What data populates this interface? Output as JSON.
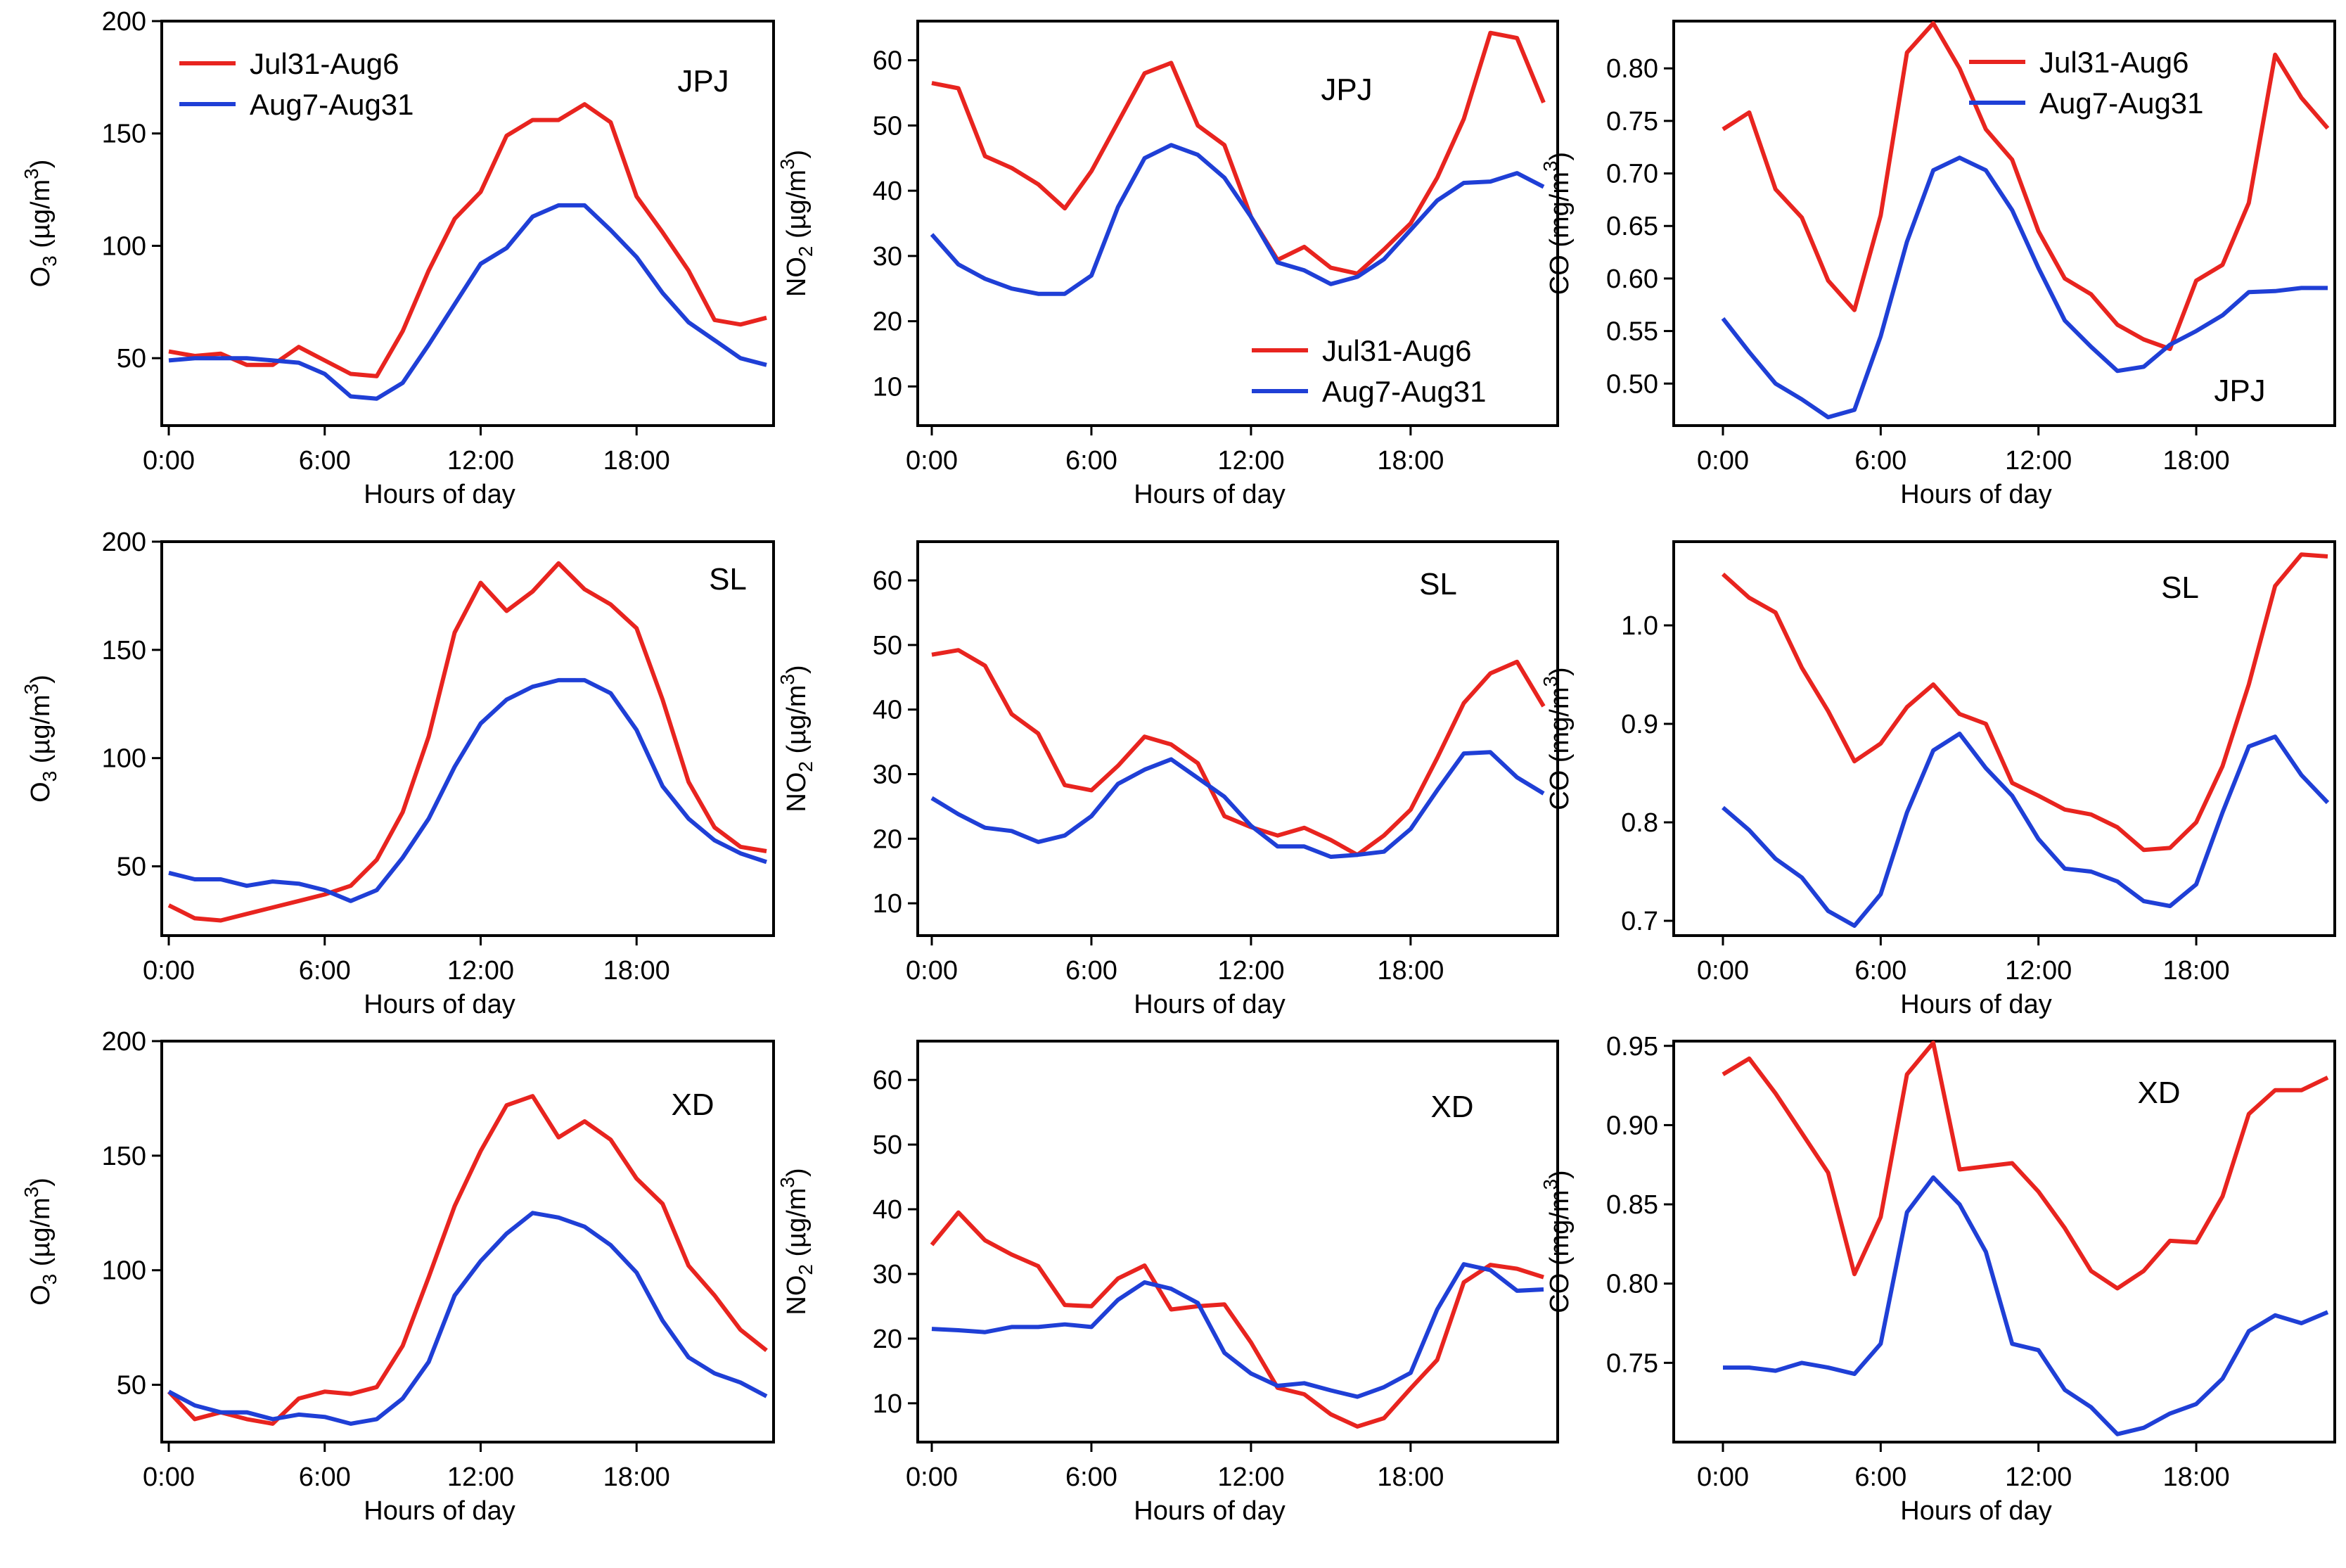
{
  "figure": {
    "x_tick_labels": [
      "0:00",
      "6:00",
      "12:00",
      "18:00"
    ],
    "xlabel": "Hours of day",
    "legend": [
      "Jul31-Aug6",
      "Aug7-Aug31"
    ],
    "colors": {
      "Jul31-Aug6": "#e8241f",
      "Aug7-Aug31": "#1f3fd6"
    }
  },
  "chart_data": [
    {
      "id": "o3-jpj",
      "type": "line",
      "site": "JPJ",
      "ylabel": "O3 (µg/m3)",
      "xlabel": "Hours of day",
      "x": [
        0,
        1,
        2,
        3,
        4,
        5,
        6,
        7,
        8,
        9,
        10,
        11,
        12,
        13,
        14,
        15,
        16,
        17,
        18,
        19,
        20,
        21,
        22,
        23
      ],
      "ylim": [
        20,
        200
      ],
      "yticks": [
        50,
        100,
        150,
        200
      ],
      "legend": "top-left",
      "series": [
        {
          "name": "Jul31-Aug6",
          "values": [
            53,
            51,
            52,
            47,
            47,
            55,
            49,
            43,
            42,
            62,
            89,
            112,
            124,
            149,
            156,
            156,
            163,
            155,
            122,
            106,
            89,
            67,
            65,
            68
          ]
        },
        {
          "name": "Aug7-Aug31",
          "values": [
            49,
            50,
            50,
            50,
            49,
            48,
            43,
            33,
            32,
            39,
            56,
            74,
            92,
            99,
            113,
            118,
            118,
            107,
            95,
            79,
            66,
            58,
            50,
            47
          ]
        }
      ]
    },
    {
      "id": "no2-jpj",
      "type": "line",
      "site": "JPJ",
      "ylabel": "NO2 (µg/m3)",
      "xlabel": "Hours of day",
      "x": [
        0,
        1,
        2,
        3,
        4,
        5,
        6,
        7,
        8,
        9,
        10,
        11,
        12,
        13,
        14,
        15,
        16,
        17,
        18,
        19,
        20,
        21,
        22,
        23
      ],
      "ylim": [
        4,
        66
      ],
      "yticks": [
        10,
        20,
        30,
        40,
        50,
        60
      ],
      "legend": "lower-right",
      "series": [
        {
          "name": "Jul31-Aug6",
          "values": [
            56.5,
            55.7,
            45.3,
            43.5,
            41,
            37.3,
            43,
            50.5,
            58,
            59.6,
            50,
            47,
            36,
            29.4,
            31.4,
            28.2,
            27.3,
            31,
            35,
            42,
            51,
            64.2,
            63.4,
            53.5
          ]
        },
        {
          "name": "Aug7-Aug31",
          "values": [
            33.3,
            28.7,
            26.5,
            25,
            24.2,
            24.2,
            27,
            37.5,
            45,
            47,
            45.5,
            42,
            36,
            29,
            27.8,
            25.7,
            26.8,
            29.5,
            34,
            38.5,
            41.2,
            41.4,
            42.7,
            40.6
          ]
        }
      ]
    },
    {
      "id": "co-jpj",
      "type": "line",
      "site": "JPJ",
      "ylabel": "CO (mg/m3)",
      "xlabel": "Hours of day",
      "x": [
        0,
        1,
        2,
        3,
        4,
        5,
        6,
        7,
        8,
        9,
        10,
        11,
        12,
        13,
        14,
        15,
        16,
        17,
        18,
        19,
        20,
        21,
        22,
        23
      ],
      "ylim": [
        0.46,
        0.845
      ],
      "yticks": [
        0.5,
        0.55,
        0.6,
        0.65,
        0.7,
        0.75,
        0.8
      ],
      "legend": "top-right",
      "series": [
        {
          "name": "Jul31-Aug6",
          "values": [
            0.742,
            0.758,
            0.685,
            0.658,
            0.598,
            0.57,
            0.66,
            0.815,
            0.843,
            0.8,
            0.742,
            0.713,
            0.645,
            0.6,
            0.585,
            0.556,
            0.542,
            0.533,
            0.598,
            0.613,
            0.672,
            0.813,
            0.772,
            0.743
          ]
        },
        {
          "name": "Aug7-Aug31",
          "values": [
            0.562,
            0.53,
            0.5,
            0.485,
            0.468,
            0.475,
            0.545,
            0.635,
            0.703,
            0.715,
            0.703,
            0.665,
            0.61,
            0.56,
            0.535,
            0.512,
            0.516,
            0.537,
            0.55,
            0.565,
            0.587,
            0.588,
            0.591,
            0.591
          ]
        }
      ]
    },
    {
      "id": "o3-sl",
      "type": "line",
      "site": "SL",
      "ylabel": "O3 (µg/m3)",
      "xlabel": "Hours of day",
      "x": [
        0,
        1,
        2,
        3,
        4,
        5,
        6,
        7,
        8,
        9,
        10,
        11,
        12,
        13,
        14,
        15,
        16,
        17,
        18,
        19,
        20,
        21,
        22,
        23
      ],
      "ylim": [
        18,
        200
      ],
      "yticks": [
        50,
        100,
        150,
        200
      ],
      "legend": "none",
      "series": [
        {
          "name": "Jul31-Aug6",
          "values": [
            32,
            26,
            25,
            28,
            31,
            34,
            37,
            41,
            53,
            75,
            110,
            158,
            181,
            168,
            177,
            190,
            178,
            171,
            160,
            127,
            89,
            68,
            59,
            57
          ]
        },
        {
          "name": "Aug7-Aug31",
          "values": [
            47,
            44,
            44,
            41,
            43,
            42,
            39,
            34,
            39,
            54,
            72,
            96,
            116,
            127,
            133,
            136,
            136,
            130,
            113,
            87,
            72,
            62,
            56,
            52
          ]
        }
      ]
    },
    {
      "id": "no2-sl",
      "type": "line",
      "site": "SL",
      "ylabel": "NO2 (µg/m3)",
      "xlabel": "Hours of day",
      "x": [
        0,
        1,
        2,
        3,
        4,
        5,
        6,
        7,
        8,
        9,
        10,
        11,
        12,
        13,
        14,
        15,
        16,
        17,
        18,
        19,
        20,
        21,
        22,
        23
      ],
      "ylim": [
        5,
        66
      ],
      "yticks": [
        10,
        20,
        30,
        40,
        50,
        60
      ],
      "legend": "none",
      "series": [
        {
          "name": "Jul31-Aug6",
          "values": [
            48.5,
            49.2,
            46.8,
            39.3,
            36.3,
            28.3,
            27.5,
            31.3,
            35.8,
            34.6,
            31.7,
            23.5,
            21.8,
            20.5,
            21.7,
            19.8,
            17.5,
            20.5,
            24.5,
            32.5,
            41,
            45.6,
            47.4,
            40.5
          ]
        },
        {
          "name": "Aug7-Aug31",
          "values": [
            26.3,
            23.8,
            21.7,
            21.2,
            19.5,
            20.5,
            23.5,
            28.5,
            30.7,
            32.3,
            29.4,
            26.5,
            22,
            18.8,
            18.8,
            17.2,
            17.5,
            18,
            21.5,
            27.5,
            33.2,
            33.4,
            29.5,
            27
          ]
        }
      ]
    },
    {
      "id": "co-sl",
      "type": "line",
      "site": "SL",
      "ylabel": "CO (mg/m3)",
      "xlabel": "Hours of day",
      "x": [
        0,
        1,
        2,
        3,
        4,
        5,
        6,
        7,
        8,
        9,
        10,
        11,
        12,
        13,
        14,
        15,
        16,
        17,
        18,
        19,
        20,
        21,
        22,
        23
      ],
      "ylim": [
        0.685,
        1.085
      ],
      "yticks": [
        0.7,
        0.8,
        0.9,
        1.0
      ],
      "legend": "none",
      "series": [
        {
          "name": "Jul31-Aug6",
          "values": [
            1.052,
            1.028,
            1.013,
            0.957,
            0.913,
            0.862,
            0.88,
            0.917,
            0.94,
            0.91,
            0.9,
            0.84,
            0.827,
            0.813,
            0.808,
            0.795,
            0.772,
            0.774,
            0.8,
            0.857,
            0.94,
            1.04,
            1.072,
            1.07
          ]
        },
        {
          "name": "Aug7-Aug31",
          "values": [
            0.815,
            0.792,
            0.763,
            0.744,
            0.71,
            0.695,
            0.727,
            0.81,
            0.873,
            0.89,
            0.855,
            0.827,
            0.783,
            0.753,
            0.75,
            0.74,
            0.72,
            0.715,
            0.737,
            0.81,
            0.877,
            0.887,
            0.848,
            0.82
          ]
        }
      ]
    },
    {
      "id": "o3-xd",
      "type": "line",
      "site": "XD",
      "ylabel": "O3 (µg/m3)",
      "xlabel": "Hours of day",
      "x": [
        0,
        1,
        2,
        3,
        4,
        5,
        6,
        7,
        8,
        9,
        10,
        11,
        12,
        13,
        14,
        15,
        16,
        17,
        18,
        19,
        20,
        21,
        22,
        23
      ],
      "ylim": [
        25,
        200
      ],
      "yticks": [
        50,
        100,
        150,
        200
      ],
      "legend": "none",
      "series": [
        {
          "name": "Jul31-Aug6",
          "values": [
            47,
            35,
            38,
            35,
            33,
            44,
            47,
            46,
            49,
            67,
            97,
            128,
            152,
            172,
            176,
            158,
            165,
            157,
            140,
            129,
            102,
            89,
            74,
            65
          ]
        },
        {
          "name": "Aug7-Aug31",
          "values": [
            47,
            41,
            38,
            38,
            35,
            37,
            36,
            33,
            35,
            44,
            60,
            89,
            104,
            116,
            125,
            123,
            119,
            111,
            99,
            78,
            62,
            55,
            51,
            45
          ]
        }
      ]
    },
    {
      "id": "no2-xd",
      "type": "line",
      "site": "XD",
      "ylabel": "NO2 (µg/m3)",
      "xlabel": "Hours of day",
      "x": [
        0,
        1,
        2,
        3,
        4,
        5,
        6,
        7,
        8,
        9,
        10,
        11,
        12,
        13,
        14,
        15,
        16,
        17,
        18,
        19,
        20,
        21,
        22,
        23
      ],
      "ylim": [
        4,
        66
      ],
      "yticks": [
        10,
        20,
        30,
        40,
        50,
        60
      ],
      "legend": "none",
      "series": [
        {
          "name": "Jul31-Aug6",
          "values": [
            34.5,
            39.5,
            35.2,
            33,
            31.2,
            25.2,
            25,
            29.3,
            31.3,
            24.5,
            25,
            25.3,
            19.4,
            12.4,
            11.4,
            8.3,
            6.4,
            7.7,
            12.3,
            16.7,
            28.7,
            31.4,
            30.8,
            29.5
          ]
        },
        {
          "name": "Aug7-Aug31",
          "values": [
            21.5,
            21.3,
            21,
            21.8,
            21.8,
            22.2,
            21.8,
            26,
            28.7,
            27.7,
            25.5,
            17.8,
            14.6,
            12.7,
            13.1,
            12,
            11,
            12.5,
            14.7,
            24.5,
            31.5,
            30.6,
            27.4,
            27.6
          ]
        }
      ]
    },
    {
      "id": "co-xd",
      "type": "line",
      "site": "XD",
      "ylabel": "CO (mg/m3)",
      "xlabel": "Hours of day",
      "x": [
        0,
        1,
        2,
        3,
        4,
        5,
        6,
        7,
        8,
        9,
        10,
        11,
        12,
        13,
        14,
        15,
        16,
        17,
        18,
        19,
        20,
        21,
        22,
        23
      ],
      "ylim": [
        0.7,
        0.953
      ],
      "yticks": [
        0.75,
        0.8,
        0.85,
        0.9,
        0.95
      ],
      "legend": "none",
      "series": [
        {
          "name": "Jul31-Aug6",
          "values": [
            0.932,
            0.942,
            0.92,
            0.895,
            0.87,
            0.806,
            0.842,
            0.932,
            0.952,
            0.872,
            0.874,
            0.876,
            0.858,
            0.835,
            0.808,
            0.797,
            0.808,
            0.827,
            0.826,
            0.855,
            0.907,
            0.922,
            0.922,
            0.93
          ]
        },
        {
          "name": "Aug7-Aug31",
          "values": [
            0.747,
            0.747,
            0.745,
            0.75,
            0.747,
            0.743,
            0.762,
            0.845,
            0.867,
            0.85,
            0.82,
            0.762,
            0.758,
            0.733,
            0.722,
            0.705,
            0.709,
            0.718,
            0.724,
            0.74,
            0.77,
            0.78,
            0.775,
            0.782
          ]
        }
      ]
    }
  ]
}
